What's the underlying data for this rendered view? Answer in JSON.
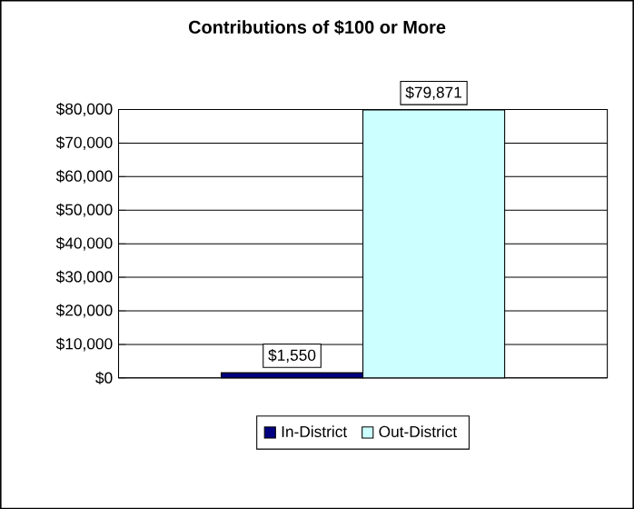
{
  "chart_data": {
    "type": "bar",
    "title": "Contributions of $100 or More",
    "categories": [
      null
    ],
    "series": [
      {
        "name": "In-District",
        "color": "#000080",
        "values": [
          1550
        ],
        "value_labels": [
          "$1,550"
        ]
      },
      {
        "name": "Out-District",
        "color": "#ccffff",
        "values": [
          79871
        ],
        "value_labels": [
          "$79,871"
        ]
      }
    ],
    "ylim": [
      0,
      80000
    ],
    "yticks": [
      {
        "value": 0,
        "label": "$0"
      },
      {
        "value": 10000,
        "label": "$10,000"
      },
      {
        "value": 20000,
        "label": "$20,000"
      },
      {
        "value": 30000,
        "label": "$30,000"
      },
      {
        "value": 40000,
        "label": "$40,000"
      },
      {
        "value": 50000,
        "label": "$50,000"
      },
      {
        "value": 60000,
        "label": "$60,000"
      },
      {
        "value": 70000,
        "label": "$70,000"
      },
      {
        "value": 80000,
        "label": "$80,000"
      }
    ],
    "grid": "y",
    "legend": "bottom"
  }
}
